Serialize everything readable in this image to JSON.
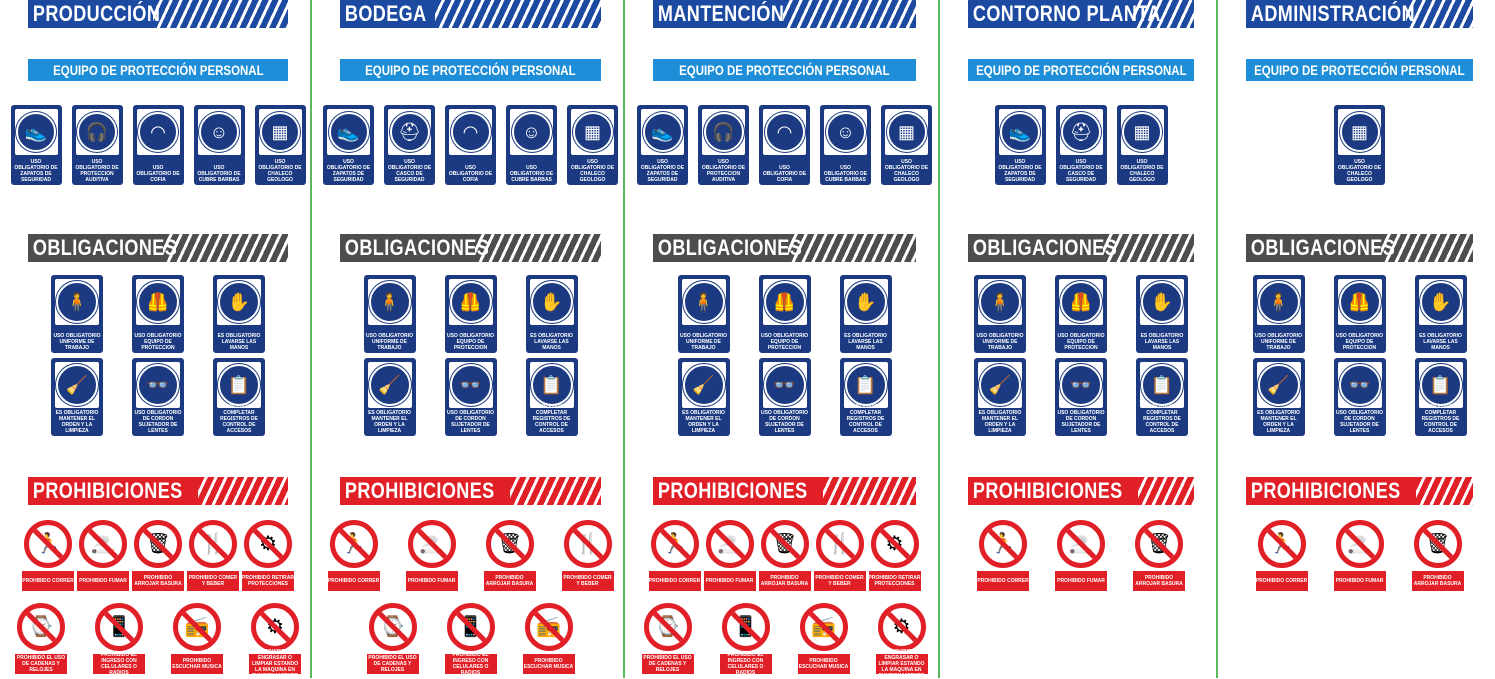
{
  "sections": {
    "epp": "EQUIPO DE PROTECCIÓN PERSONAL",
    "obligaciones": "OBLIGACIONES",
    "prohibiciones": "PROHIBICIONES"
  },
  "columns": [
    {
      "title": "PRODUCCIÓN"
    },
    {
      "title": "BODEGA"
    },
    {
      "title": "MANTENCIÓN"
    },
    {
      "title": "CONTORNO PLANTA"
    },
    {
      "title": "ADMINISTRACIÓN"
    }
  ],
  "epp_labels": {
    "zapatos": "USO OBLIGATORIO DE ZAPATOS DE SEGURIDAD",
    "auditiva": "USO OBLIGATORIO DE PROTECCION AUDITIVA",
    "cofia": "USO OBLIGATORIO DE COFIA",
    "barbas": "USO OBLIGATORIO DE CUBRE BARBAS",
    "chaleco": "USO OBLIGATORIO DE CHALECO GEOLOGO",
    "casco": "USO OBLIGATORIO DE CASCO DE SEGURIDAD"
  },
  "obl_labels": {
    "uniforme": "USO OBLIGATORIO UNIFORME DE TRABAJO",
    "equipo": "USO OBLIGATORIO EQUIPO DE PROTECCION",
    "manos": "ES OBLIGATORIO LAVARSE LAS MANOS",
    "orden": "ES OBLIGATORIO MANTENER EL ORDEN Y LA LIMPIEZA",
    "lentes": "USO OBLIGATORIO DE CORDON SUJETADOR DE LENTES",
    "registros": "ES OBLIGATORIO COMPLETAR REGISTROS DE CONTROL DE ACCESOS"
  },
  "proh_labels": {
    "correr": "PROHIBIDO CORRER",
    "fumar": "PROHIBIDO FUMAR",
    "basura": "PROHIBIDO ARROJAR BASURA",
    "comer": "PROHIBIDO COMER Y BEBER",
    "protecciones": "PROHIBIDO RETIRAR PROTECCIONES",
    "cadenas": "PROHIBIDO EL USO DE CADENAS Y RELOJES",
    "celulares": "PROHIBIDO EL INGRESO CON CELULARES O RADIOS",
    "musica": "PROHIBIDO ESCUCHAR MUSICA",
    "engrasar": "PROHIBIDO ENGRASAR O LIMPIAR ESTANDO LA MAQUINA EN FUNCIONAMIENTO"
  },
  "colors": {
    "header_blue": "#1b4aa0",
    "epp_blue": "#1e8ed8",
    "sign_blue": "#1b3a82",
    "obl_gray": "#4d4d4d",
    "proh_red": "#e11f26",
    "divider_green": "#5bb85c"
  }
}
